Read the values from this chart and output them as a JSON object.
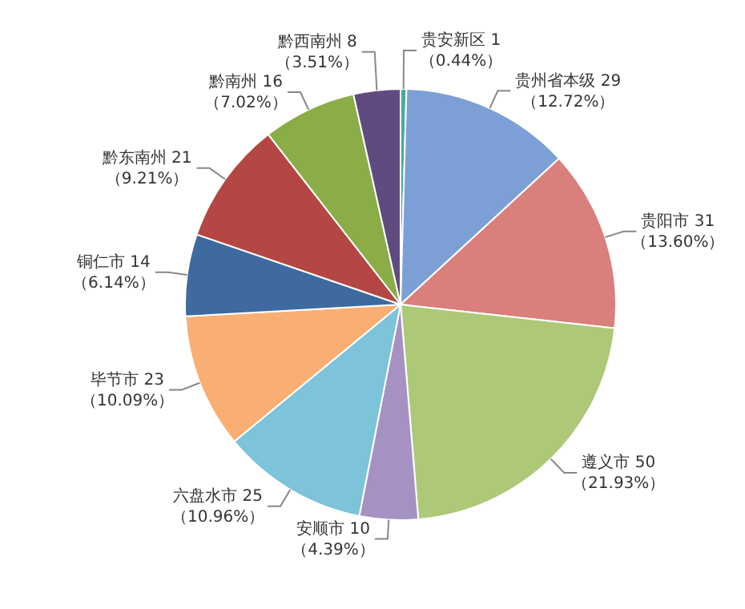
{
  "chart_data": {
    "type": "pie",
    "categories": [
      "贵安新区",
      "贵州省本级",
      "贵阳市",
      "遵义市",
      "安顺市",
      "六盘水市",
      "毕节市",
      "铜仁市",
      "黔东南州",
      "黔南州",
      "黔西南州"
    ],
    "values": [
      1,
      29,
      31,
      50,
      10,
      25,
      23,
      14,
      21,
      16,
      8
    ],
    "value_labels": [
      "1\n（0.44%）",
      "29\n（12.72%）",
      "31\n（13.60%）",
      "50\n（21.93%）",
      "10\n（4.39%）",
      "25\n（10.96%）",
      "23\n（10.09%）",
      "14\n（6.14%）",
      "21\n（9.21%）",
      "16\n（7.02%）",
      "8\n（3.51%）"
    ],
    "colors": [
      "#4aa8a8",
      "#7ca0d6",
      "#d97f7c",
      "#adc978",
      "#a592c2",
      "#7dc3d9",
      "#f9af74",
      "#3e6aa0",
      "#b44744",
      "#8aad47",
      "#5f4b80"
    ],
    "legend": false
  }
}
